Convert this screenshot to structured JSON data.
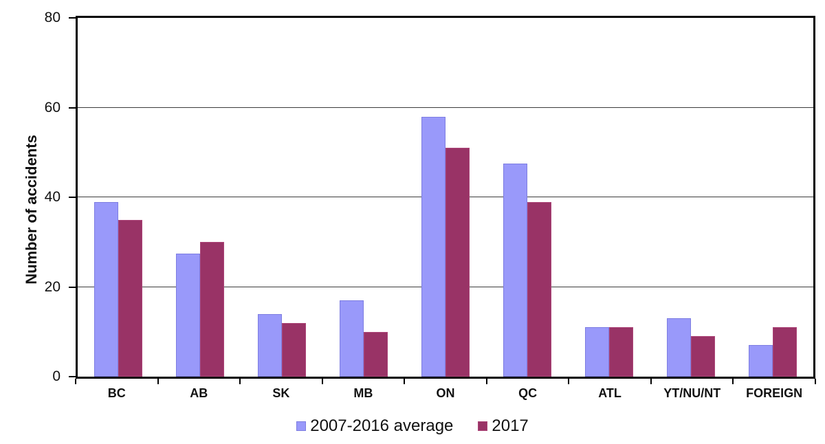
{
  "chart_data": {
    "type": "bar",
    "title": "",
    "xlabel": "",
    "ylabel": "Number of accidents",
    "categories": [
      "BC",
      "AB",
      "SK",
      "MB",
      "ON",
      "QC",
      "ATL",
      "YT/NU/NT",
      "FOREIGN"
    ],
    "series": [
      {
        "name": "2007-2016 average",
        "color": "#9999FA",
        "border_color": "#7d7de1",
        "values": [
          39,
          27.5,
          14,
          17,
          58,
          47.5,
          11,
          13,
          7
        ]
      },
      {
        "name": "2017",
        "color": "#993366",
        "border_color": "#ac4578",
        "values": [
          35,
          30,
          12,
          10,
          51,
          39,
          11,
          9,
          11
        ]
      }
    ],
    "ylim": [
      0,
      80
    ],
    "yticks": [
      0,
      20,
      40,
      60,
      80
    ],
    "grid": "horizontal",
    "legend_position": "bottom",
    "plot_border_color": "#000000",
    "gridline_color": "#3c3c3c",
    "background_color": "#ffffff"
  }
}
